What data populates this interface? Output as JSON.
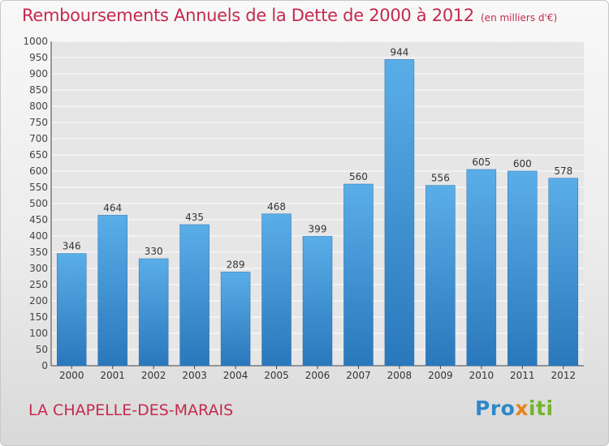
{
  "title": "Remboursements Annuels de la Dette de 2000 à 2012",
  "subtitle": "(en milliers d'€)",
  "commune": "LA CHAPELLE-DES-MARAIS",
  "logo": {
    "part1": "Pro",
    "part2": "x",
    "part3": "iti"
  },
  "colors": {
    "accent": "#c42a4e",
    "bar_top": "#5aaee8",
    "bar_bottom": "#2a78bc",
    "grid": "#ffffff",
    "plot_bg": "#e6e6e6"
  },
  "chart_data": {
    "type": "bar",
    "categories": [
      "2000",
      "2001",
      "2002",
      "2003",
      "2004",
      "2005",
      "2006",
      "2007",
      "2008",
      "2009",
      "2010",
      "2011",
      "2012"
    ],
    "values": [
      346,
      464,
      330,
      435,
      289,
      468,
      399,
      560,
      944,
      556,
      605,
      600,
      578
    ],
    "title": "Remboursements Annuels de la Dette de 2000 à 2012",
    "subtitle": "(en milliers d'€)",
    "xlabel": "",
    "ylabel": "",
    "ylim": [
      0,
      1000
    ],
    "ytick_step": 50,
    "grid": true,
    "legend": "none"
  }
}
